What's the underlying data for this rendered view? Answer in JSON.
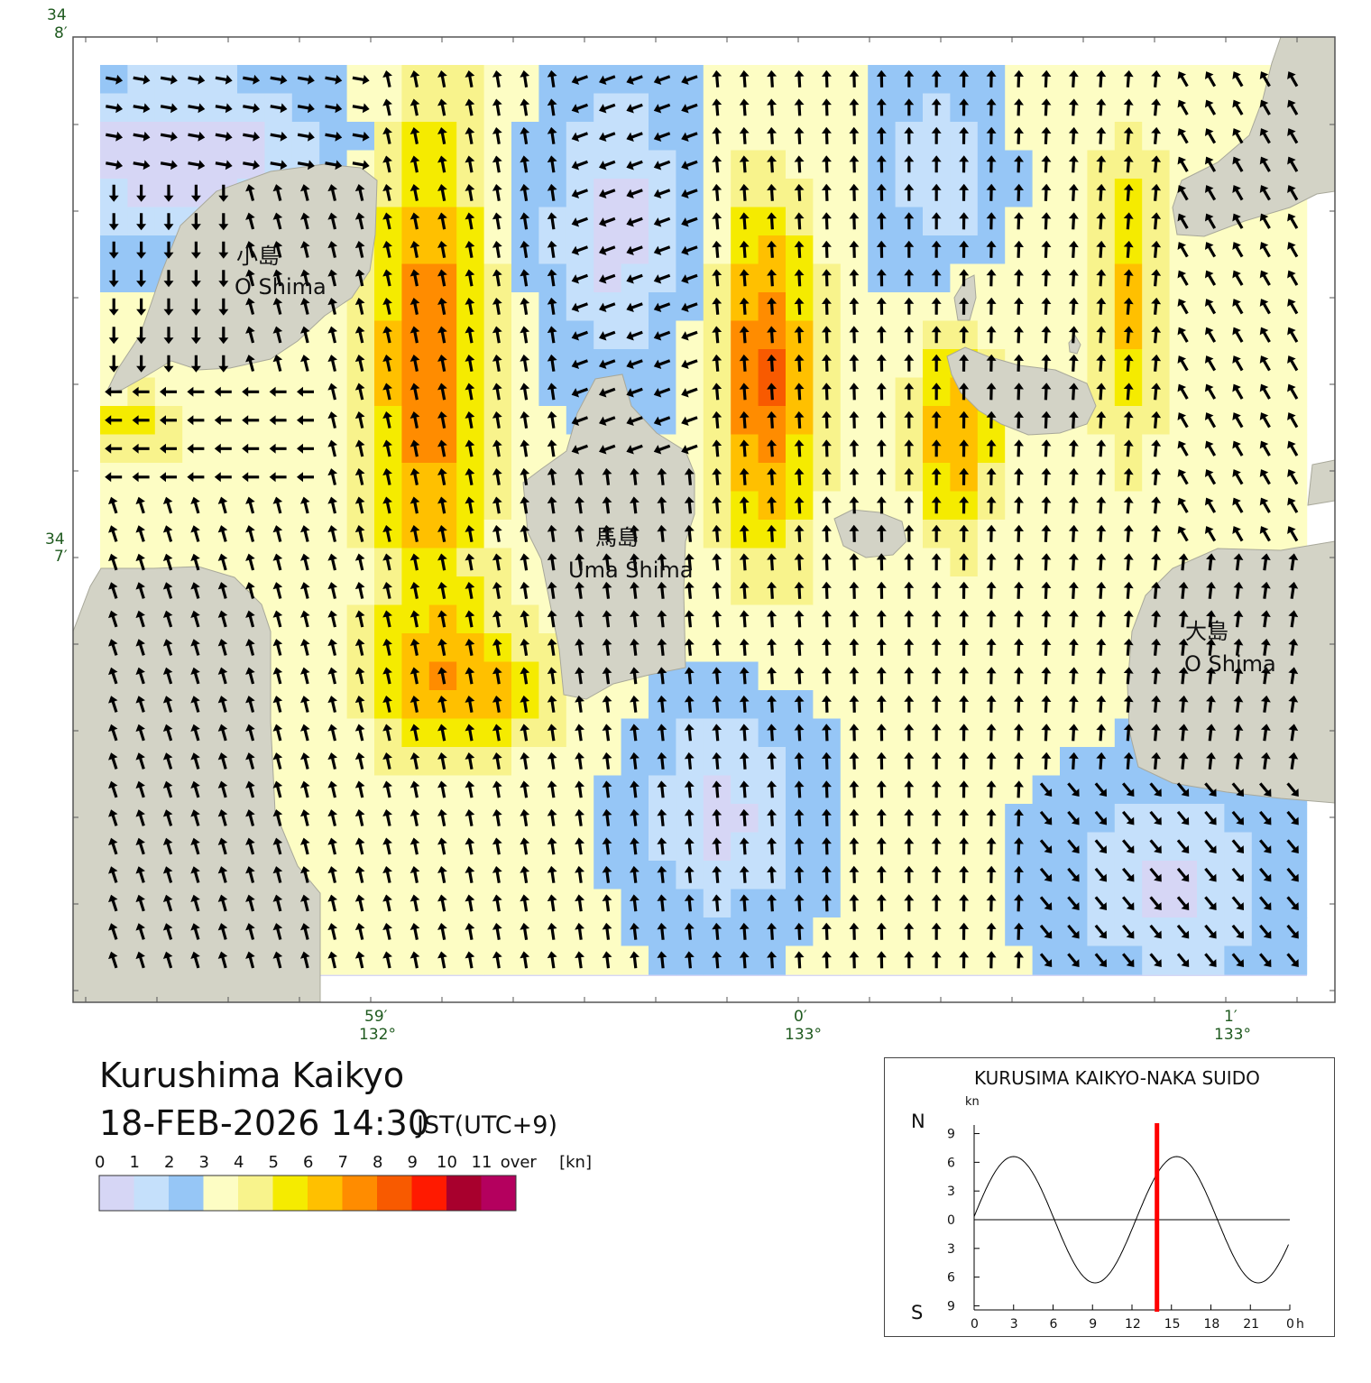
{
  "map": {
    "latitude_labels": [
      {
        "deg": "34",
        "min": "8′"
      },
      {
        "deg": "34",
        "min": "7′"
      }
    ],
    "longitude_labels": [
      {
        "min": "59′",
        "deg": "132°"
      },
      {
        "min": "0′",
        "deg": "133°"
      },
      {
        "min": "1′",
        "deg": "133°"
      }
    ],
    "islands": [
      {
        "name_ja": "小島",
        "name_en": "O Shima"
      },
      {
        "name_ja": "馬島",
        "name_en": "Uma Shima"
      },
      {
        "name_ja": "大島",
        "name_en": "O Shima"
      }
    ],
    "colors": {
      "land": "#d3d3c6",
      "sea": "#d6d6f5",
      "frame": "#555555",
      "arrow": "#000000"
    }
  },
  "title": {
    "place": "Kurushima Kaikyo",
    "datetime": "18-FEB-2026 14:30",
    "timezone": "JST(UTC+9)"
  },
  "legend": {
    "labels": [
      "0",
      "1",
      "2",
      "3",
      "4",
      "5",
      "6",
      "7",
      "8",
      "9",
      "10",
      "11",
      "over",
      "[kn]"
    ],
    "colors": [
      "#d6d6f5",
      "#c5e0fb",
      "#96c6f6",
      "#fdfdc4",
      "#f8f38c",
      "#f5eb00",
      "#ffc000",
      "#ff8c00",
      "#f85a00",
      "#ff1a00",
      "#a8002d",
      "#b4005e"
    ]
  },
  "tide_panel": {
    "title": "KURUSIMA KAIKYO-NAKA SUIDO",
    "unit": "kn",
    "north_label": "N",
    "south_label": "S",
    "y_ticks": [
      "9",
      "6",
      "3",
      "0",
      "3",
      "6",
      "9"
    ],
    "x_ticks": [
      "0",
      "3",
      "6",
      "9",
      "12",
      "15",
      "18",
      "21",
      "0"
    ],
    "x_unit": "h",
    "current_hour": 13.9,
    "marker_color": "#ff0000",
    "curve": {
      "amplitude_kn": 6.6,
      "period_h": 12.4,
      "peak_hour": 3.0
    }
  }
}
